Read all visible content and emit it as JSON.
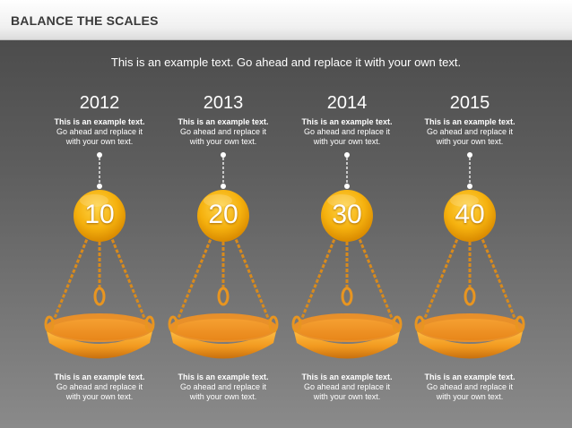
{
  "header": {
    "title": "BALANCE THE SCALES"
  },
  "subtitle": "This is an example text. Go ahead and replace it with your own text.",
  "colors": {
    "accent": "#f2a20e",
    "pan": "#f0961e",
    "chain": "#d88a1c"
  },
  "items": [
    {
      "year": "2012",
      "value": "10",
      "top_text": {
        "bold": "This is an example text.",
        "line2": "Go ahead and replace it",
        "line3": "with your own text."
      },
      "bottom_text": {
        "bold": "This is an example text.",
        "line2": "Go ahead and replace it",
        "line3": "with your own text."
      }
    },
    {
      "year": "2013",
      "value": "20",
      "top_text": {
        "bold": "This is an example text.",
        "line2": "Go ahead and replace it",
        "line3": "with your own text."
      },
      "bottom_text": {
        "bold": "This is an example text.",
        "line2": "Go ahead and replace it",
        "line3": "with your own text."
      }
    },
    {
      "year": "2014",
      "value": "30",
      "top_text": {
        "bold": "This is an example text.",
        "line2": "Go ahead and replace it",
        "line3": "with your own text."
      },
      "bottom_text": {
        "bold": "This is an example text.",
        "line2": "Go ahead and replace it",
        "line3": "with your own text."
      }
    },
    {
      "year": "2015",
      "value": "40",
      "top_text": {
        "bold": "This is an example text.",
        "line2": "Go ahead and replace it",
        "line3": "with your own text."
      },
      "bottom_text": {
        "bold": "This is an example text.",
        "line2": "Go ahead and replace it",
        "line3": "with your own text."
      }
    }
  ]
}
